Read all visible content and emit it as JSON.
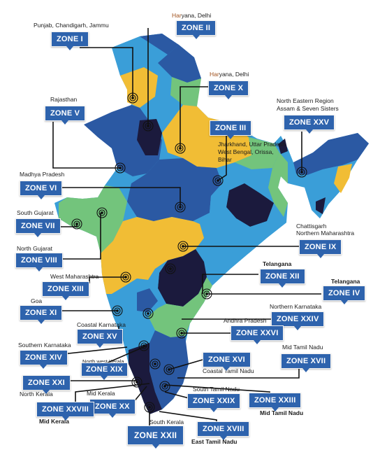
{
  "colors": {
    "dark_blue": "#2b59a3",
    "light_blue": "#3a9ed8",
    "yellow": "#f1bd35",
    "green": "#73c47c",
    "navy": "#1b1a3d",
    "zone_box": "#2e63ad"
  },
  "zones": {
    "z1": "ZONE I",
    "z2": "ZONE II",
    "z3": "ZONE III",
    "z4": "ZONE IV",
    "z5": "ZONE V",
    "z6": "ZONE VI",
    "z7": "ZONE VII",
    "z8": "ZONE VIII",
    "z9": "ZONE IX",
    "z10": "ZONE X",
    "z11": "ZONE XI",
    "z12": "ZONE XII",
    "z13": "ZONE XIII",
    "z14": "ZONE XIV",
    "z15": "ZONE XV",
    "z16": "ZONE XVI",
    "z17": "ZONE XVII",
    "z18": "ZONE XVIII",
    "z19": "ZONE XIX",
    "z20": "ZONE XX",
    "z21": "ZONE XXI",
    "z22": "ZONE XXII",
    "z23": "ZONE XXIII",
    "z24": "ZONE XXIV",
    "z25": "ZONE XXV",
    "z26": "ZONE XXVI",
    "z28": "ZONE XXVIII",
    "z29": "ZONE XXIX"
  },
  "labels": {
    "punjab": "Punjab, Chandigarh, Jammu",
    "haryana_a_hi": "Har",
    "haryana_a_rest": "yana, Delhi",
    "haryana_b_hi": "Har",
    "haryana_b_rest": "yana, Delhi",
    "rajasthan": "Rajasthan",
    "ne_line1": "North Eastern Region",
    "ne_line2": "Assam & Seven Sisters",
    "jh_line1": "Jharkhand, Uttar Pradesh",
    "jh_line2": "West Bengal, Orissa,",
    "jh_line3": "Bihar",
    "mp": "Madhya Pradesh",
    "south_gujarat": "South Gujarat",
    "north_gujarat": "North Gujarat",
    "chh_line1": "Chattisgarh",
    "chh_line2": "Northern Maharashtra",
    "telangana_a": "Telangana",
    "west_maha": "West Maharashtra",
    "telangana_b": "Telangana",
    "goa": "Goa",
    "north_karnataka": "Northern Karnataka",
    "andhra": "Andhra Pradesh",
    "coastal_karnataka": "Coastal Karnataka",
    "southern_karnataka": "Southern Karnataka",
    "north_west_kerala": "North west Kerala",
    "mid_tamil_nadu_a": "Mid Tamil Nadu",
    "coastal_tamil_nadu": "Coastal Tamil Nadu",
    "north_kerala": "North Kerala",
    "mid_kerala_a": "Mid Kerala",
    "south_tamil_nadu": "South Tamil Nadu",
    "mid_kerala_b": "Mid Kerala",
    "mid_tamil_nadu_b": "Mid Tamil Nadu",
    "south_kerala": "South Kerala",
    "east_tamil_nadu": "East Tamil Nadu"
  }
}
